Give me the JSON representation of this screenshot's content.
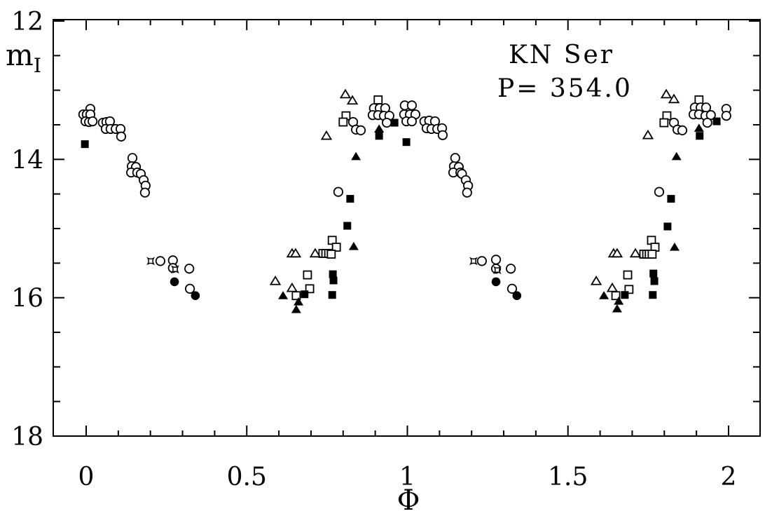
{
  "figure": {
    "background": "#ffffff",
    "foreground": "#000000",
    "title_line1": "KN Ser",
    "title_line2": "P= 354.0",
    "y_axis_label_main": "m",
    "y_axis_label_sub": "I",
    "x_axis_label": "Φ"
  },
  "chart_data": {
    "type": "scatter",
    "title": "KN Ser",
    "annotation": "P= 354.0",
    "xlabel": "Φ",
    "ylabel": "m_I",
    "xlim": [
      -0.103,
      2.098
    ],
    "ylim": [
      18,
      12
    ],
    "y_axis_inverted": true,
    "grid": false,
    "legend": false,
    "x_ticks": {
      "major": [
        0,
        0.5,
        1,
        1.5,
        2
      ],
      "labels": [
        "0",
        "0.5",
        "1",
        "1.5",
        "2"
      ],
      "minor_step": 0.1
    },
    "y_ticks": {
      "major": [
        12,
        14,
        16,
        18
      ],
      "labels": [
        "12",
        "14",
        "16",
        "18"
      ],
      "minor_step": 0.5
    },
    "series": [
      {
        "name": "open-squares",
        "marker": "square-open",
        "points": [
          [
            0.766,
            15.17
          ],
          [
            0.779,
            15.27
          ],
          [
            0.737,
            15.36
          ],
          [
            0.746,
            15.36
          ],
          [
            0.755,
            15.36
          ],
          [
            0.763,
            15.37
          ],
          [
            0.689,
            15.67
          ],
          [
            0.696,
            15.87
          ],
          [
            0.654,
            15.97
          ],
          [
            0.809,
            13.37
          ],
          [
            0.8,
            13.46
          ],
          [
            0.909,
            13.14
          ],
          [
            1.76,
            15.17
          ],
          [
            1.771,
            15.27
          ],
          [
            1.736,
            15.37
          ],
          [
            1.745,
            15.37
          ],
          [
            1.753,
            15.37
          ],
          [
            1.762,
            15.37
          ],
          [
            1.686,
            15.67
          ],
          [
            1.69,
            15.88
          ],
          [
            1.649,
            15.97
          ],
          [
            1.808,
            13.37
          ],
          [
            1.799,
            13.47
          ],
          [
            1.908,
            13.14
          ]
        ]
      },
      {
        "name": "open-triangles",
        "marker": "triangle-open",
        "points": [
          [
            0.589,
            15.76
          ],
          [
            0.641,
            15.36
          ],
          [
            0.652,
            15.36
          ],
          [
            0.713,
            15.36
          ],
          [
            0.641,
            15.86
          ],
          [
            0.748,
            13.66
          ],
          [
            0.807,
            13.06
          ],
          [
            0.829,
            13.15
          ],
          [
            1.588,
            15.76
          ],
          [
            1.642,
            15.36
          ],
          [
            1.653,
            15.36
          ],
          [
            1.71,
            15.36
          ],
          [
            1.638,
            15.86
          ],
          [
            1.749,
            13.65
          ],
          [
            1.806,
            13.06
          ],
          [
            1.83,
            13.13
          ]
        ]
      },
      {
        "name": "open-circles",
        "marker": "circle-open",
        "points": [
          [
            0.013,
            13.27
          ],
          [
            -0.009,
            13.35
          ],
          [
            0.002,
            13.35
          ],
          [
            0.013,
            13.35
          ],
          [
            -0.002,
            13.45
          ],
          [
            0.009,
            13.46
          ],
          [
            0.02,
            13.45
          ],
          [
            0.052,
            13.47
          ],
          [
            0.063,
            13.46
          ],
          [
            0.074,
            13.45
          ],
          [
            0.061,
            13.56
          ],
          [
            0.076,
            13.56
          ],
          [
            0.092,
            13.56
          ],
          [
            0.107,
            13.56
          ],
          [
            0.109,
            13.67
          ],
          [
            0.144,
            13.98
          ],
          [
            0.142,
            14.1
          ],
          [
            0.155,
            14.11
          ],
          [
            0.14,
            14.19
          ],
          [
            0.159,
            14.19
          ],
          [
            0.17,
            14.21
          ],
          [
            0.179,
            14.3
          ],
          [
            0.185,
            14.38
          ],
          [
            0.183,
            14.48
          ],
          [
            0.231,
            15.47
          ],
          [
            0.27,
            15.46
          ],
          [
            0.27,
            15.57
          ],
          [
            0.321,
            15.58
          ],
          [
            0.323,
            15.87
          ],
          [
            0.785,
            14.47
          ],
          [
            0.831,
            13.46
          ],
          [
            0.84,
            13.57
          ],
          [
            0.855,
            13.58
          ],
          [
            0.896,
            13.26
          ],
          [
            0.914,
            13.26
          ],
          [
            0.931,
            13.26
          ],
          [
            0.892,
            13.36
          ],
          [
            0.909,
            13.36
          ],
          [
            0.927,
            13.37
          ],
          [
            0.944,
            13.37
          ],
          [
            0.936,
            13.47
          ],
          [
            0.992,
            13.22
          ],
          [
            1.014,
            13.22
          ],
          [
            0.99,
            13.35
          ],
          [
            1.008,
            13.35
          ],
          [
            1.025,
            13.35
          ],
          [
            0.997,
            13.45
          ],
          [
            1.014,
            13.45
          ],
          [
            1.053,
            13.45
          ],
          [
            1.068,
            13.44
          ],
          [
            1.086,
            13.45
          ],
          [
            1.06,
            13.55
          ],
          [
            1.075,
            13.56
          ],
          [
            1.093,
            13.56
          ],
          [
            1.108,
            13.55
          ],
          [
            1.11,
            13.65
          ],
          [
            1.149,
            13.98
          ],
          [
            1.145,
            14.1
          ],
          [
            1.16,
            14.11
          ],
          [
            1.143,
            14.19
          ],
          [
            1.165,
            14.19
          ],
          [
            1.17,
            14.21
          ],
          [
            1.182,
            14.3
          ],
          [
            1.189,
            14.38
          ],
          [
            1.186,
            14.48
          ],
          [
            1.232,
            15.47
          ],
          [
            1.276,
            15.45
          ],
          [
            1.276,
            15.58
          ],
          [
            1.322,
            15.58
          ],
          [
            1.326,
            15.87
          ],
          [
            1.784,
            14.47
          ],
          [
            1.83,
            13.47
          ],
          [
            1.841,
            13.57
          ],
          [
            1.856,
            13.58
          ],
          [
            1.895,
            13.25
          ],
          [
            1.913,
            13.25
          ],
          [
            1.93,
            13.25
          ],
          [
            1.891,
            13.35
          ],
          [
            1.908,
            13.35
          ],
          [
            1.928,
            13.37
          ],
          [
            1.945,
            13.36
          ],
          [
            1.934,
            13.47
          ],
          [
            1.993,
            13.27
          ],
          [
            1.993,
            13.37
          ]
        ]
      },
      {
        "name": "filled-squares",
        "marker": "square-filled",
        "points": [
          [
            -0.004,
            13.78
          ],
          [
            0.68,
            15.95
          ],
          [
            0.766,
            15.96
          ],
          [
            0.768,
            15.66
          ],
          [
            0.77,
            15.75
          ],
          [
            0.813,
            14.96
          ],
          [
            0.822,
            14.57
          ],
          [
            0.912,
            13.66
          ],
          [
            0.96,
            13.47
          ],
          [
            0.997,
            13.75
          ],
          [
            1.677,
            15.96
          ],
          [
            1.764,
            15.96
          ],
          [
            1.766,
            15.65
          ],
          [
            1.769,
            15.76
          ],
          [
            1.81,
            14.97
          ],
          [
            1.821,
            14.57
          ],
          [
            1.91,
            13.66
          ],
          [
            1.963,
            13.45
          ]
        ]
      },
      {
        "name": "filled-triangles",
        "marker": "triangle-filled",
        "points": [
          [
            0.613,
            15.97
          ],
          [
            0.654,
            16.17
          ],
          [
            0.661,
            16.06
          ],
          [
            0.833,
            15.26
          ],
          [
            0.84,
            13.96
          ],
          [
            0.912,
            13.56
          ],
          [
            1.612,
            15.97
          ],
          [
            1.653,
            16.16
          ],
          [
            1.658,
            16.05
          ],
          [
            1.832,
            15.27
          ],
          [
            1.838,
            13.96
          ],
          [
            1.908,
            13.55
          ]
        ]
      },
      {
        "name": "filled-circles",
        "marker": "circle-filled",
        "points": [
          [
            0.275,
            15.77
          ],
          [
            0.34,
            15.97
          ],
          [
            1.276,
            15.77
          ],
          [
            1.341,
            15.97
          ]
        ]
      },
      {
        "name": "four-point-stars",
        "marker": "star4-open",
        "points": [
          [
            0.201,
            15.47
          ],
          [
            0.277,
            15.59
          ],
          [
            1.206,
            15.47
          ],
          [
            1.28,
            15.6
          ]
        ]
      }
    ]
  }
}
